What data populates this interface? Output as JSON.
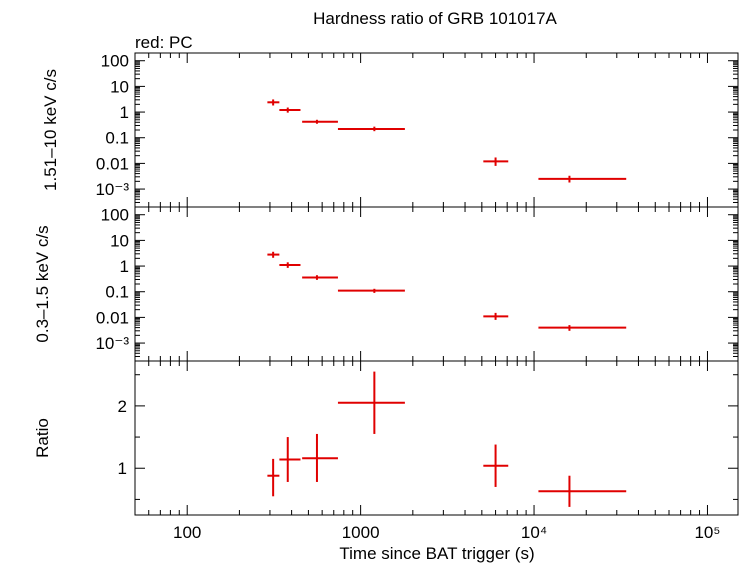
{
  "title": "Hardness ratio of GRB 101017A",
  "subtitle": "red: PC",
  "xlabel": "Time since BAT trigger (s)",
  "colors": {
    "data": "#e00000",
    "axes": "#000000"
  },
  "chart_data": [
    {
      "type": "scatter",
      "ylabel": "1.51–10 keV c/s",
      "yscale": "log",
      "ylim": [
        0.0002,
        200
      ],
      "ytick_labels": [
        "100",
        "10",
        "1",
        "0.1",
        "0.01",
        "10⁻³"
      ],
      "xscale": "log",
      "xlim": [
        50,
        150000
      ],
      "series": [
        {
          "x": [
            313,
            380,
            560,
            1200,
            6000,
            16000
          ],
          "xerr_lo": [
            290,
            340,
            460,
            740,
            5100,
            10600
          ],
          "xerr_hi": [
            340,
            450,
            740,
            1800,
            7100,
            34000
          ],
          "y": [
            2.4,
            1.2,
            0.42,
            0.22,
            0.012,
            0.0025
          ],
          "yerr_lo": [
            1.8,
            0.95,
            0.35,
            0.18,
            0.008,
            0.0018
          ],
          "yerr_hi": [
            3.1,
            1.5,
            0.5,
            0.27,
            0.017,
            0.0033
          ]
        }
      ]
    },
    {
      "type": "scatter",
      "ylabel": "0.3–1.5 keV c/s",
      "yscale": "log",
      "ylim": [
        0.0002,
        200
      ],
      "ytick_labels": [
        "100",
        "10",
        "1",
        "0.1",
        "0.01",
        "10⁻³"
      ],
      "xscale": "log",
      "xlim": [
        50,
        150000
      ],
      "series": [
        {
          "x": [
            313,
            380,
            560,
            1200,
            6000,
            16000
          ],
          "xerr_lo": [
            290,
            340,
            460,
            740,
            5100,
            10600
          ],
          "xerr_hi": [
            340,
            450,
            740,
            1800,
            7100,
            34000
          ],
          "y": [
            2.8,
            1.1,
            0.36,
            0.11,
            0.011,
            0.004
          ],
          "yerr_lo": [
            2.1,
            0.85,
            0.29,
            0.09,
            0.008,
            0.003
          ],
          "yerr_hi": [
            3.6,
            1.4,
            0.44,
            0.13,
            0.015,
            0.005
          ]
        }
      ]
    },
    {
      "type": "scatter",
      "ylabel": "Ratio",
      "yscale": "linear",
      "ylim": [
        0.25,
        2.72
      ],
      "yticks": [
        1,
        2
      ],
      "ytick_labels": [
        "1",
        "2"
      ],
      "xscale": "log",
      "xlim": [
        50,
        150000
      ],
      "xtick_labels": [
        "100",
        "1000",
        "10⁴",
        "10⁵"
      ],
      "series": [
        {
          "x": [
            313,
            380,
            560,
            1200,
            6000,
            16000
          ],
          "xerr_lo": [
            290,
            340,
            460,
            740,
            5100,
            10600
          ],
          "xerr_hi": [
            340,
            450,
            740,
            1800,
            7100,
            34000
          ],
          "y": [
            0.88,
            1.14,
            1.16,
            2.05,
            1.04,
            0.63
          ],
          "yerr_lo": [
            0.55,
            0.78,
            0.78,
            1.55,
            0.7,
            0.38
          ],
          "yerr_hi": [
            1.15,
            1.5,
            1.55,
            2.55,
            1.38,
            0.88
          ]
        }
      ]
    }
  ]
}
